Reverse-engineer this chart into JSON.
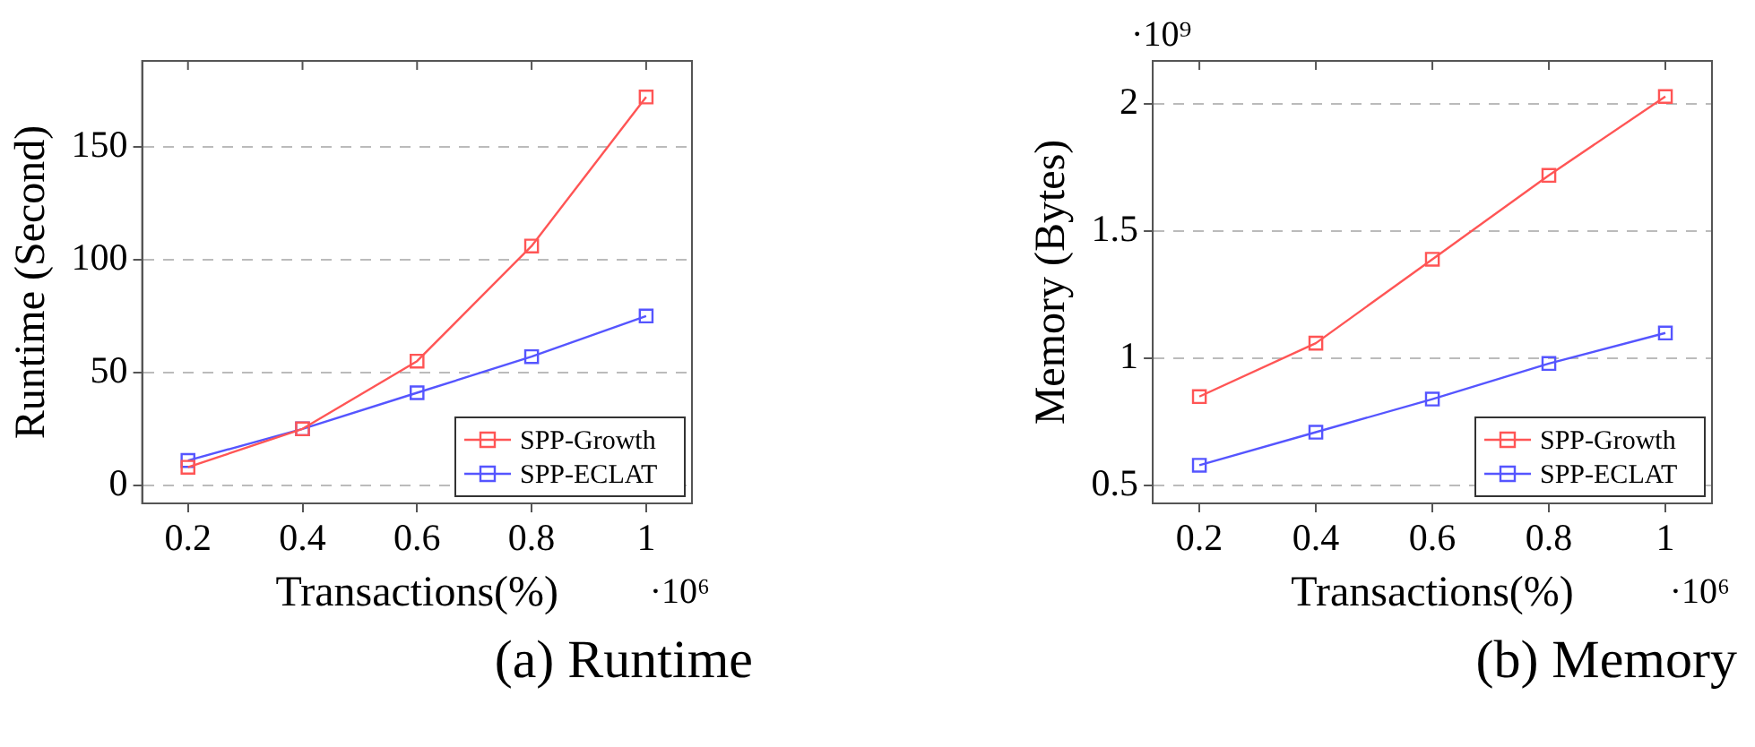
{
  "chart_data": [
    {
      "type": "line",
      "title": "(a) Runtime",
      "xlabel": "Transactions(%)",
      "ylabel": "Runtime (Second)",
      "x": [
        0.2,
        0.4,
        0.6,
        0.8,
        1
      ],
      "xlim": [
        0.12,
        1.08
      ],
      "xticks": [
        0.2,
        0.4,
        0.6,
        0.8,
        1
      ],
      "ylim": [
        -8,
        188
      ],
      "yticks": [
        0,
        50,
        100,
        150
      ],
      "grid": "y",
      "legend": "bottom right",
      "marker": "square",
      "line_style": "solid",
      "annotations": [
        "·10⁶"
      ],
      "series": [
        {
          "name": "SPP-Growth",
          "color": "#ff5555",
          "values": [
            8,
            25,
            55,
            106,
            172
          ]
        },
        {
          "name": "SPP-ECLAT",
          "color": "#5555ff",
          "values": [
            11,
            25,
            41,
            57,
            75
          ]
        }
      ]
    },
    {
      "type": "line",
      "title": "(b) Memory",
      "xlabel": "Transactions(%)",
      "ylabel": "Memory (Bytes)",
      "x": [
        0.2,
        0.4,
        0.6,
        0.8,
        1
      ],
      "xlim": [
        0.12,
        1.08
      ],
      "xticks": [
        0.2,
        0.4,
        0.6,
        0.8,
        1
      ],
      "ylim": [
        0.43,
        2.17
      ],
      "yticks": [
        0.5,
        1,
        1.5,
        2
      ],
      "grid": "y",
      "legend": "bottom right",
      "marker": "square",
      "line_style": "solid",
      "annotations": [
        "·10⁹",
        "·10⁶"
      ],
      "series": [
        {
          "name": "SPP-Growth",
          "color": "#ff5555",
          "values": [
            0.85,
            1.06,
            1.39,
            1.72,
            2.03
          ]
        },
        {
          "name": "SPP-ECLAT",
          "color": "#5555ff",
          "values": [
            0.58,
            0.71,
            0.84,
            0.98,
            1.1
          ]
        }
      ]
    }
  ]
}
